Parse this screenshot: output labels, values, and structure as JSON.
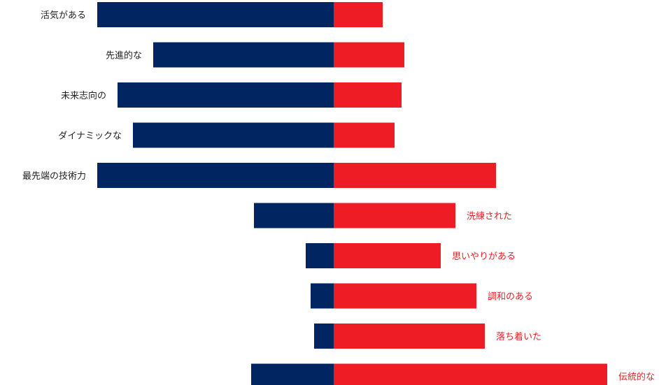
{
  "chart_data": {
    "type": "bar",
    "orientation": "horizontal-diverging",
    "categories": [
      {
        "label": "活気がある",
        "label_side": "left"
      },
      {
        "label": "先進的な",
        "label_side": "left"
      },
      {
        "label": "未来志向の",
        "label_side": "left"
      },
      {
        "label": "ダイナミックな",
        "label_side": "left"
      },
      {
        "label": "最先端の技術力",
        "label_side": "left"
      },
      {
        "label": "洗練された",
        "label_side": "right"
      },
      {
        "label": "思いやりがある",
        "label_side": "right"
      },
      {
        "label": "調和のある",
        "label_side": "right"
      },
      {
        "label": "落ち着いた",
        "label_side": "right"
      },
      {
        "label": "伝統的な",
        "label_side": "right"
      }
    ],
    "series": [
      {
        "side": "left",
        "color": "#002561",
        "values": [
          338,
          258,
          309,
          287,
          338,
          114,
          40,
          33,
          28,
          118
        ]
      },
      {
        "side": "right",
        "color": "#ee1c25",
        "values": [
          70,
          101,
          97,
          87,
          232,
          174,
          153,
          204,
          216,
          391
        ]
      }
    ],
    "label_colors": {
      "left": "#222222",
      "right": "#ee1c25"
    },
    "grid": false,
    "legend": "none"
  }
}
